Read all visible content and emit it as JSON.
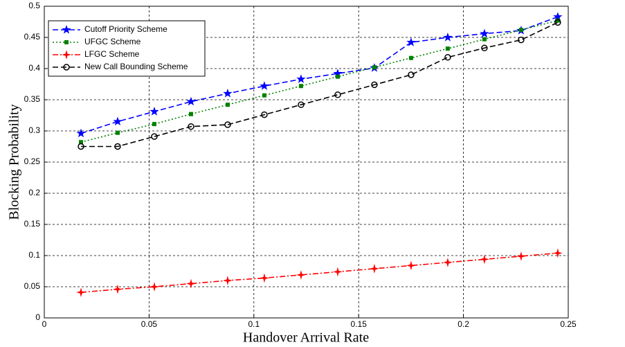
{
  "chart_data": {
    "type": "line",
    "xlabel": "Handover Arrival Rate",
    "ylabel": "Blocking Probability",
    "x": [
      0.0175,
      0.035,
      0.0525,
      0.07,
      0.0875,
      0.105,
      0.1225,
      0.14,
      0.1575,
      0.175,
      0.1925,
      0.21,
      0.2275,
      0.245
    ],
    "series": [
      {
        "name": "Cutoff Priority Scheme",
        "color": "#0000ff",
        "dash": "8 4",
        "marker": "star",
        "values": [
          0.296,
          0.315,
          0.331,
          0.347,
          0.36,
          0.372,
          0.383,
          0.392,
          0.401,
          0.442,
          0.45,
          0.456,
          0.461,
          0.483
        ]
      },
      {
        "name": "UFGC Scheme",
        "color": "#008000",
        "dash": "2 3",
        "marker": "square",
        "values": [
          0.282,
          0.297,
          0.311,
          0.327,
          0.342,
          0.357,
          0.372,
          0.387,
          0.402,
          0.417,
          0.432,
          0.447,
          0.462,
          0.477
        ]
      },
      {
        "name": "LFGC Scheme",
        "color": "#ff0000",
        "dash": "8 3 2 3",
        "marker": "diamond",
        "values": [
          0.041,
          0.046,
          0.05,
          0.055,
          0.06,
          0.064,
          0.069,
          0.074,
          0.079,
          0.084,
          0.089,
          0.094,
          0.099,
          0.104
        ]
      },
      {
        "name": "New Call Bounding Scheme",
        "color": "#000000",
        "dash": "8 4",
        "marker": "circle",
        "values": [
          0.275,
          0.275,
          0.291,
          0.307,
          0.31,
          0.326,
          0.342,
          0.358,
          0.374,
          0.39,
          0.418,
          0.433,
          0.446,
          0.474
        ]
      }
    ],
    "xlim": [
      0,
      0.25
    ],
    "xticks": [
      0,
      0.05,
      0.1,
      0.15,
      0.2,
      0.25
    ],
    "ylim": [
      0,
      0.5
    ],
    "yticks": [
      0,
      0.05,
      0.1,
      0.15,
      0.2,
      0.25,
      0.3,
      0.35,
      0.4,
      0.45,
      0.5
    ],
    "grid": true,
    "legend": "upper left"
  }
}
